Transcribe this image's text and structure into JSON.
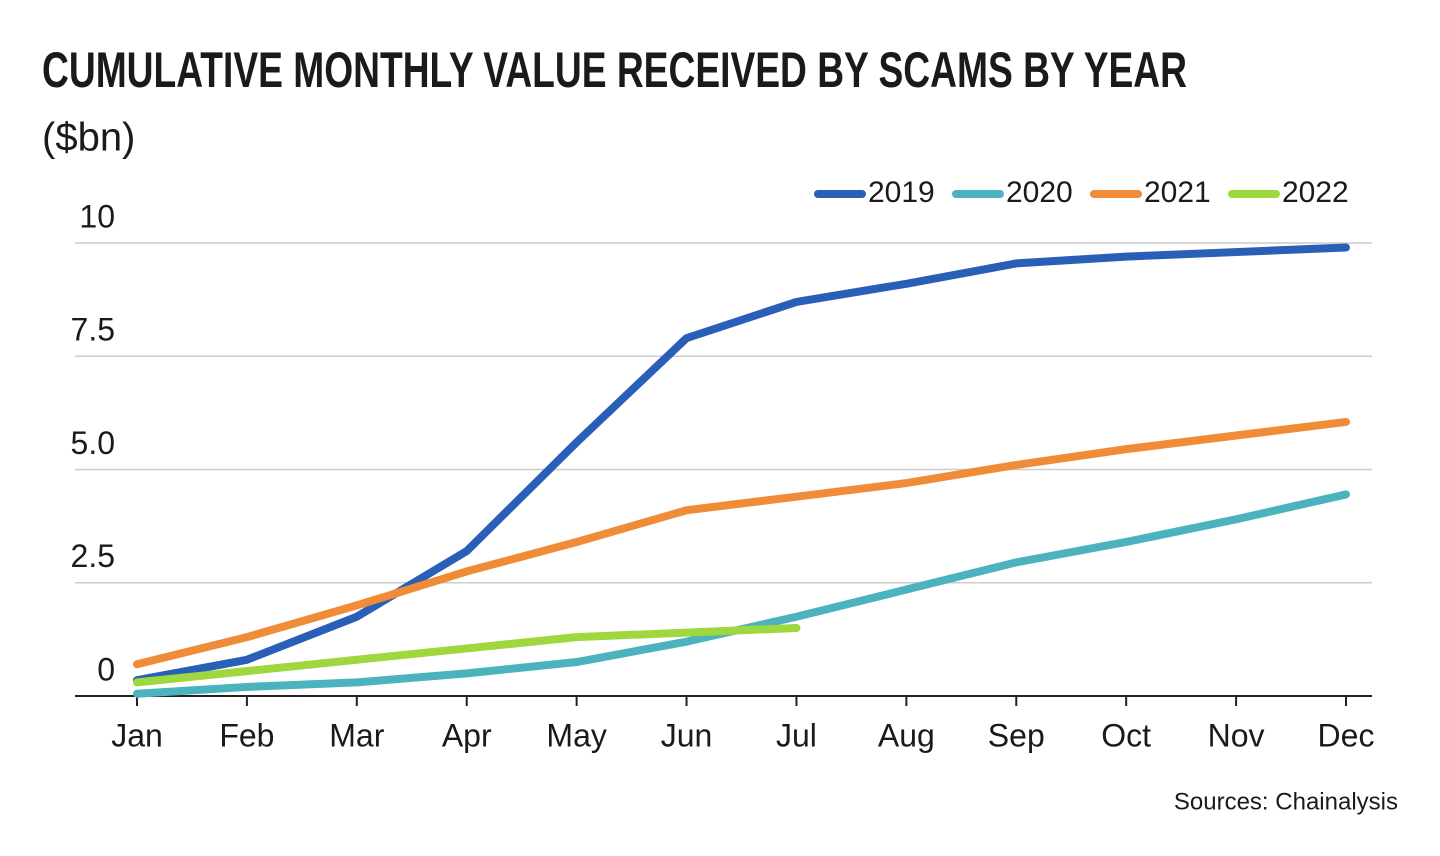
{
  "chart_data": {
    "type": "line",
    "title": "CUMULATIVE MONTHLY VALUE RECEIVED BY SCAMS BY YEAR",
    "subtitle": "($bn)",
    "source": "Sources: Chainalysis",
    "categories": [
      "Jan",
      "Feb",
      "Mar",
      "Apr",
      "May",
      "Jun",
      "Jul",
      "Aug",
      "Sep",
      "Oct",
      "Nov",
      "Dec"
    ],
    "series": [
      {
        "name": "2019",
        "color": "#2a5fb8",
        "values": [
          0.35,
          0.8,
          1.75,
          3.2,
          5.6,
          7.9,
          8.7,
          9.1,
          9.55,
          9.7,
          9.8,
          9.9
        ]
      },
      {
        "name": "2020",
        "color": "#4bb3bd",
        "values": [
          0.05,
          0.2,
          0.3,
          0.5,
          0.75,
          1.2,
          1.75,
          2.35,
          2.95,
          3.4,
          3.9,
          4.45
        ]
      },
      {
        "name": "2021",
        "color": "#f08c38",
        "values": [
          0.7,
          1.3,
          2.0,
          2.75,
          3.4,
          4.1,
          4.4,
          4.7,
          5.1,
          5.45,
          5.75,
          6.05
        ]
      },
      {
        "name": "2022",
        "color": "#9ed83e",
        "values": [
          0.3,
          0.55,
          0.8,
          1.05,
          1.3,
          1.4,
          1.5,
          null,
          null,
          null,
          null,
          null
        ]
      }
    ],
    "ylim": [
      0,
      10
    ],
    "yticks": [
      0,
      2.5,
      {
        "value": 5,
        "label": "5.0"
      },
      7.5,
      10
    ],
    "grid": true,
    "legend": "top-right"
  }
}
